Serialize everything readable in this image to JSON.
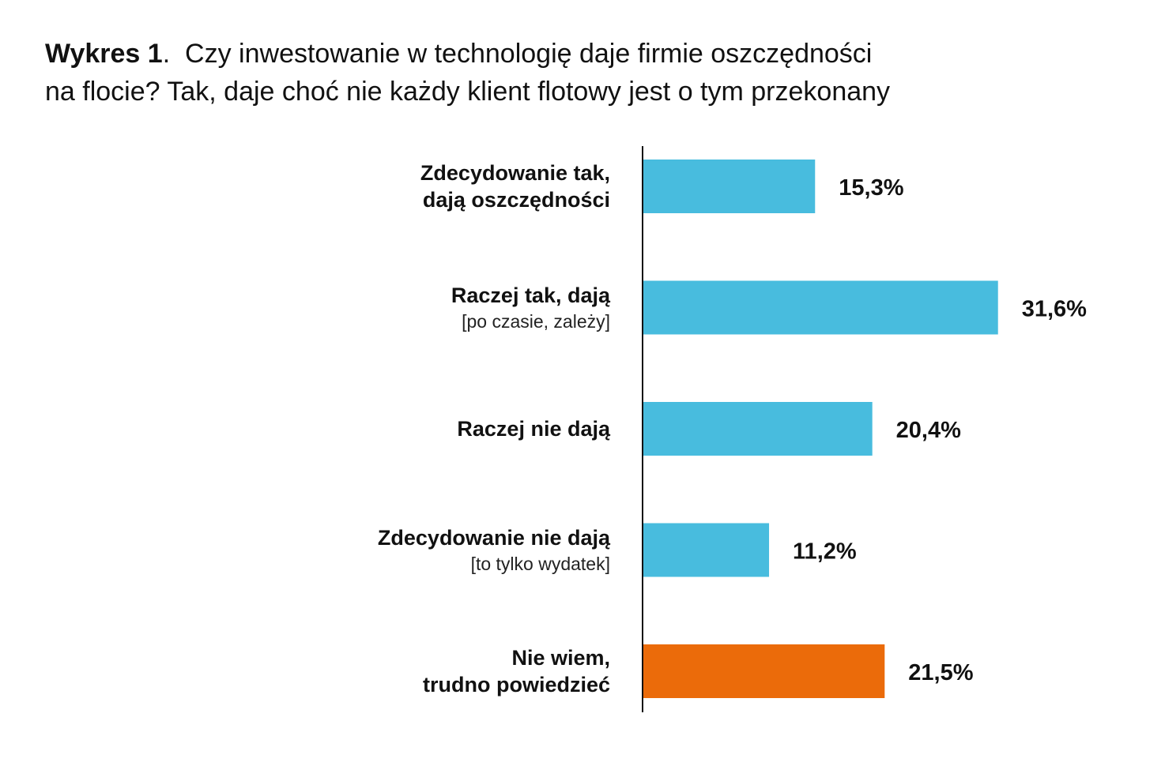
{
  "title": {
    "prefix": "Wykres 1",
    "separator": ".  ",
    "line1": "Czy inwestowanie w technologię daje firmie oszczędności",
    "line2": "na flocie? Tak, daje choć nie każdy klient flotowy jest o tym przekonany"
  },
  "colors": {
    "primary": "#48BCDE",
    "highlight": "#EB6B0A",
    "axis": "#111111",
    "text": "#111111"
  },
  "chart_data": {
    "type": "bar",
    "orientation": "horizontal",
    "categories": [
      {
        "main": [
          "Zdecydowanie tak,",
          "dają oszczędności"
        ],
        "sub": ""
      },
      {
        "main": [
          "Raczej tak, dają"
        ],
        "sub": "[po czasie, zależy]"
      },
      {
        "main": [
          "Raczej nie dają"
        ],
        "sub": ""
      },
      {
        "main": [
          "Zdecydowanie nie dają"
        ],
        "sub": "[to tylko wydatek]"
      },
      {
        "main": [
          "Nie wiem,",
          "trudno powiedzieć"
        ],
        "sub": ""
      }
    ],
    "values": [
      15.3,
      31.6,
      20.4,
      11.2,
      21.5
    ],
    "value_labels": [
      "15,3%",
      "31,6%",
      "20,4%",
      "11,2%",
      "21,5%"
    ],
    "bar_colors": [
      "#48BCDE",
      "#48BCDE",
      "#48BCDE",
      "#48BCDE",
      "#EB6B0A"
    ],
    "xlim": [
      0,
      35
    ],
    "grid": false,
    "legend": "none"
  }
}
